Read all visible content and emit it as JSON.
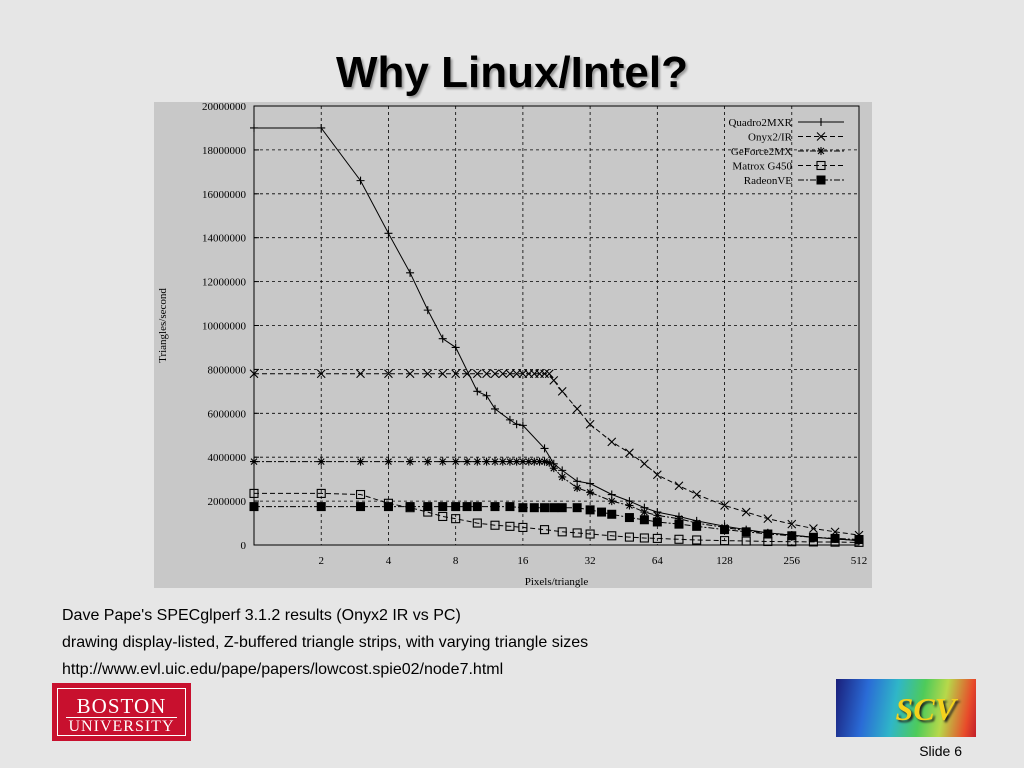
{
  "slide": {
    "title": "Why Linux/Intel?",
    "caption_lines": [
      "Dave Pape's SPECglperf 3.1.2 results (Onyx2 IR vs PC)",
      "drawing display-listed, Z-buffered triangle strips, with varying triangle sizes",
      "http://www.evl.uic.edu/pape/papers/lowcost.spie02/node7.html"
    ],
    "slide_number": "Slide 6"
  },
  "logos": {
    "left_line1": "BOSTON",
    "left_line2": "UNIVERSITY",
    "right_text": "SCV",
    "left_color": "#c8102e"
  },
  "chart_data": {
    "type": "line",
    "xlabel": "Pixels/triangle",
    "ylabel": "Triangles/second",
    "xscale": "log2",
    "xlim": [
      1,
      512
    ],
    "ylim": [
      0,
      20000000
    ],
    "xticks": [
      2,
      4,
      8,
      16,
      32,
      64,
      128,
      256,
      512
    ],
    "yticks": [
      0,
      2000000,
      4000000,
      6000000,
      8000000,
      10000000,
      12000000,
      14000000,
      16000000,
      18000000,
      20000000
    ],
    "grid": true,
    "legend_position": "top-right",
    "series": [
      {
        "name": "Quadro2MXR",
        "marker": "plus",
        "dash": "solid",
        "points": [
          [
            1,
            19000000
          ],
          [
            2,
            19000000
          ],
          [
            3,
            16600000
          ],
          [
            4,
            14200000
          ],
          [
            5,
            12400000
          ],
          [
            6,
            10700000
          ],
          [
            7,
            9400000
          ],
          [
            8,
            9000000
          ],
          [
            10,
            7000000
          ],
          [
            11,
            6800000
          ],
          [
            12,
            6200000
          ],
          [
            14,
            5700000
          ],
          [
            15,
            5500000
          ],
          [
            16,
            5450000
          ],
          [
            20,
            4400000
          ],
          [
            22,
            3700000
          ],
          [
            24,
            3400000
          ],
          [
            28,
            2900000
          ],
          [
            32,
            2800000
          ],
          [
            40,
            2300000
          ],
          [
            48,
            2000000
          ],
          [
            56,
            1700000
          ],
          [
            64,
            1500000
          ],
          [
            80,
            1300000
          ],
          [
            96,
            1100000
          ],
          [
            128,
            850000
          ],
          [
            160,
            700000
          ],
          [
            200,
            550000
          ],
          [
            256,
            450000
          ],
          [
            320,
            350000
          ],
          [
            400,
            280000
          ],
          [
            512,
            200000
          ]
        ]
      },
      {
        "name": "Onyx2/IR",
        "marker": "cross",
        "dash": "dashed",
        "points": [
          [
            1,
            7800000
          ],
          [
            2,
            7800000
          ],
          [
            3,
            7800000
          ],
          [
            4,
            7800000
          ],
          [
            5,
            7800000
          ],
          [
            6,
            7800000
          ],
          [
            7,
            7800000
          ],
          [
            8,
            7800000
          ],
          [
            9,
            7800000
          ],
          [
            10,
            7800000
          ],
          [
            11,
            7800000
          ],
          [
            12,
            7800000
          ],
          [
            13,
            7800000
          ],
          [
            14,
            7800000
          ],
          [
            15,
            7800000
          ],
          [
            16,
            7800000
          ],
          [
            17,
            7800000
          ],
          [
            18,
            7800000
          ],
          [
            19,
            7800000
          ],
          [
            20,
            7800000
          ],
          [
            21,
            7800000
          ],
          [
            22,
            7500000
          ],
          [
            24,
            7000000
          ],
          [
            28,
            6200000
          ],
          [
            32,
            5500000
          ],
          [
            40,
            4700000
          ],
          [
            48,
            4200000
          ],
          [
            56,
            3700000
          ],
          [
            64,
            3200000
          ],
          [
            80,
            2700000
          ],
          [
            96,
            2300000
          ],
          [
            128,
            1800000
          ],
          [
            160,
            1500000
          ],
          [
            200,
            1200000
          ],
          [
            256,
            950000
          ],
          [
            320,
            750000
          ],
          [
            400,
            600000
          ],
          [
            512,
            450000
          ]
        ]
      },
      {
        "name": "GeForce2MX",
        "marker": "star",
        "dash": "dash-dot",
        "points": [
          [
            1,
            3800000
          ],
          [
            2,
            3800000
          ],
          [
            3,
            3800000
          ],
          [
            4,
            3800000
          ],
          [
            5,
            3800000
          ],
          [
            6,
            3800000
          ],
          [
            7,
            3800000
          ],
          [
            8,
            3800000
          ],
          [
            9,
            3800000
          ],
          [
            10,
            3800000
          ],
          [
            11,
            3800000
          ],
          [
            12,
            3800000
          ],
          [
            13,
            3800000
          ],
          [
            14,
            3800000
          ],
          [
            15,
            3800000
          ],
          [
            16,
            3800000
          ],
          [
            17,
            3800000
          ],
          [
            18,
            3800000
          ],
          [
            19,
            3800000
          ],
          [
            20,
            3800000
          ],
          [
            21,
            3750000
          ],
          [
            22,
            3500000
          ],
          [
            24,
            3100000
          ],
          [
            28,
            2600000
          ],
          [
            32,
            2400000
          ],
          [
            40,
            2000000
          ],
          [
            48,
            1800000
          ],
          [
            56,
            1500000
          ],
          [
            64,
            1350000
          ],
          [
            80,
            1200000
          ],
          [
            96,
            1000000
          ],
          [
            128,
            800000
          ],
          [
            160,
            650000
          ],
          [
            200,
            550000
          ],
          [
            256,
            450000
          ],
          [
            320,
            350000
          ],
          [
            400,
            280000
          ],
          [
            512,
            200000
          ]
        ]
      },
      {
        "name": "Matrox G450",
        "marker": "open-square",
        "dash": "dashed",
        "points": [
          [
            1,
            2350000
          ],
          [
            2,
            2350000
          ],
          [
            3,
            2300000
          ],
          [
            4,
            1900000
          ],
          [
            5,
            1700000
          ],
          [
            6,
            1500000
          ],
          [
            7,
            1300000
          ],
          [
            8,
            1200000
          ],
          [
            10,
            1000000
          ],
          [
            12,
            900000
          ],
          [
            14,
            850000
          ],
          [
            16,
            800000
          ],
          [
            20,
            700000
          ],
          [
            24,
            600000
          ],
          [
            28,
            550000
          ],
          [
            32,
            500000
          ],
          [
            40,
            420000
          ],
          [
            48,
            360000
          ],
          [
            56,
            320000
          ],
          [
            64,
            300000
          ],
          [
            80,
            260000
          ],
          [
            96,
            230000
          ],
          [
            128,
            200000
          ],
          [
            160,
            180000
          ],
          [
            200,
            160000
          ],
          [
            256,
            150000
          ],
          [
            320,
            140000
          ],
          [
            400,
            130000
          ],
          [
            512,
            120000
          ]
        ]
      },
      {
        "name": "RadeonVE",
        "marker": "filled-square",
        "dash": "dash-dot",
        "points": [
          [
            1,
            1750000
          ],
          [
            2,
            1750000
          ],
          [
            3,
            1750000
          ],
          [
            4,
            1750000
          ],
          [
            5,
            1750000
          ],
          [
            6,
            1750000
          ],
          [
            7,
            1750000
          ],
          [
            8,
            1750000
          ],
          [
            9,
            1750000
          ],
          [
            10,
            1750000
          ],
          [
            12,
            1750000
          ],
          [
            14,
            1750000
          ],
          [
            16,
            1700000
          ],
          [
            18,
            1700000
          ],
          [
            20,
            1700000
          ],
          [
            22,
            1700000
          ],
          [
            24,
            1700000
          ],
          [
            28,
            1700000
          ],
          [
            32,
            1600000
          ],
          [
            36,
            1500000
          ],
          [
            40,
            1400000
          ],
          [
            48,
            1250000
          ],
          [
            56,
            1150000
          ],
          [
            64,
            1050000
          ],
          [
            80,
            950000
          ],
          [
            96,
            850000
          ],
          [
            128,
            700000
          ],
          [
            160,
            600000
          ],
          [
            200,
            500000
          ],
          [
            256,
            420000
          ],
          [
            320,
            350000
          ],
          [
            400,
            300000
          ],
          [
            512,
            250000
          ]
        ]
      }
    ]
  }
}
